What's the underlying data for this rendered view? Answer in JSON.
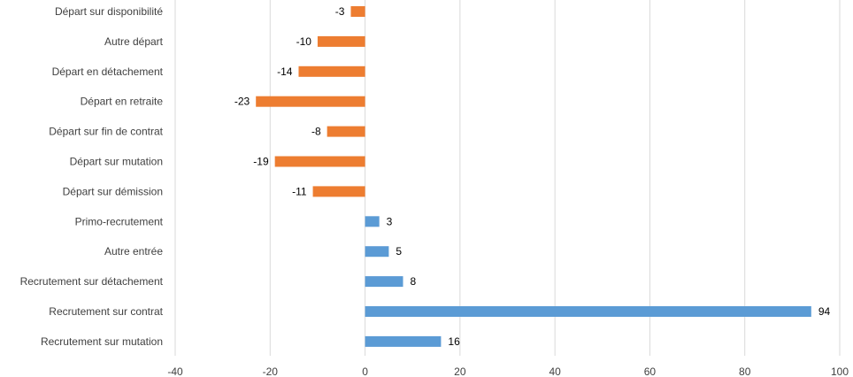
{
  "chart_data": {
    "type": "bar",
    "orientation": "horizontal",
    "categories": [
      "Départ sur disponibilité",
      "Autre départ",
      "Départ en détachement",
      "Départ en retraite",
      "Départ sur fin de contrat",
      "Départ sur mutation",
      "Départ sur démission",
      "Primo-recrutement",
      "Autre entrée",
      "Recrutement sur détachement",
      "Recrutement sur contrat",
      "Recrutement sur mutation"
    ],
    "values": [
      -3,
      -10,
      -14,
      -23,
      -8,
      -19,
      -11,
      3,
      5,
      8,
      94,
      16
    ],
    "colors": {
      "negative": "#ED7D31",
      "positive": "#5B9BD5",
      "grid": "#D9D9D9"
    },
    "xlim": [
      -40,
      100
    ],
    "x_ticks": [
      -40,
      -20,
      0,
      20,
      40,
      60,
      80,
      100
    ],
    "grid": true,
    "legend": "none",
    "title": "",
    "xlabel": "",
    "ylabel": ""
  }
}
